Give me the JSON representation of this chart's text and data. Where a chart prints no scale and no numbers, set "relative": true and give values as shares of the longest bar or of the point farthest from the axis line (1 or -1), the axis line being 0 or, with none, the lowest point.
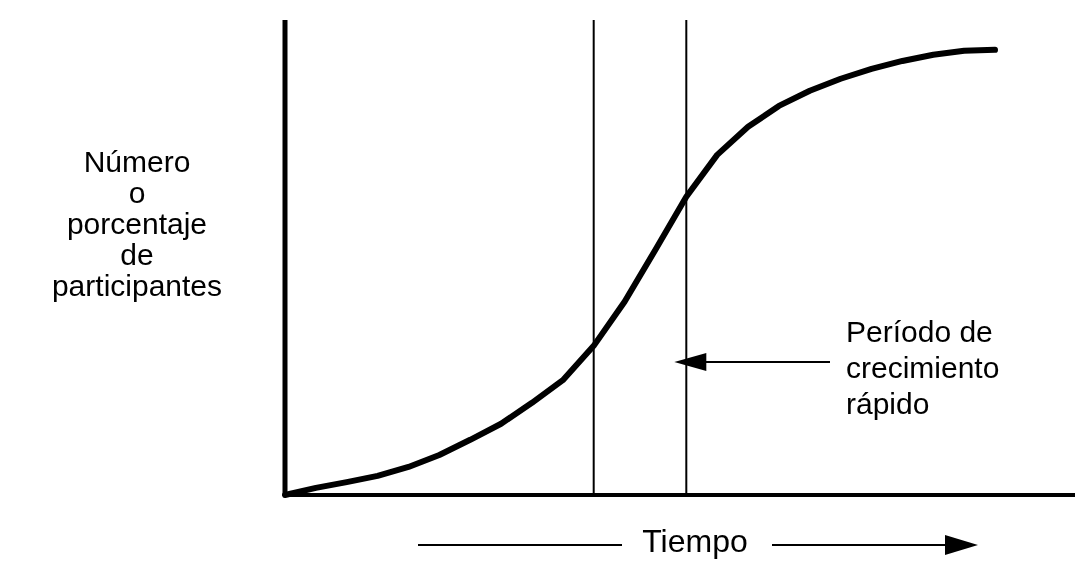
{
  "chart_data": {
    "type": "line",
    "relative": true,
    "xlabel": "Tiempo",
    "ylabel": "Número o porcentaje de participantes",
    "line_style": "solid",
    "categories": [
      null,
      null,
      null,
      null,
      null,
      null,
      null,
      null,
      null,
      null,
      null,
      null,
      null,
      null,
      null,
      null,
      null,
      null,
      null,
      null,
      null,
      null,
      null,
      null
    ],
    "series": [
      {
        "color": "#000000",
        "values": [
          0,
          0.016,
          0.029,
          0.043,
          0.063,
          0.09,
          0.124,
          0.16,
          0.207,
          0.258,
          0.335,
          0.434,
          0.551,
          0.67,
          0.764,
          0.827,
          0.874,
          0.908,
          0.935,
          0.957,
          0.975,
          0.989,
          0.998,
          1
        ]
      }
    ],
    "annotations": [
      "Período de crecimiento rápido"
    ]
  }
}
